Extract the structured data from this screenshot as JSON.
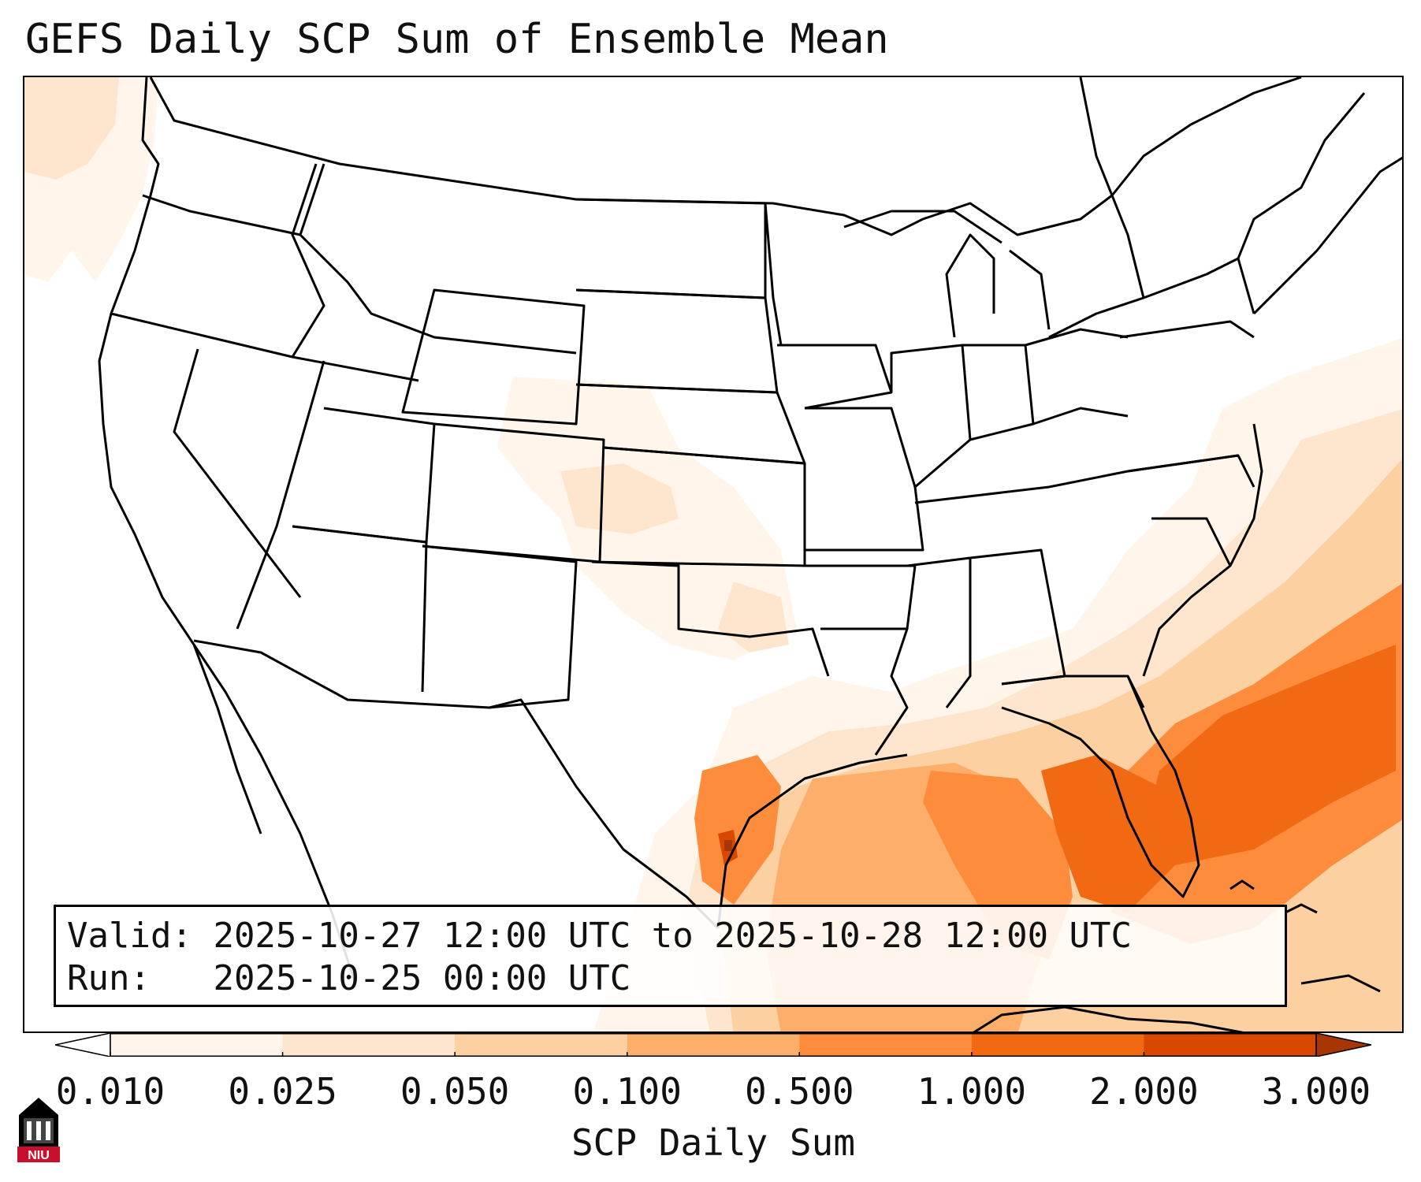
{
  "title": "GEFS Daily SCP Sum of Ensemble Mean",
  "info": {
    "valid_label": "Valid:",
    "valid_text": "2025-10-27 12:00 UTC to 2025-10-28 12:00 UTC",
    "run_label": "Run:",
    "run_text": "2025-10-25 00:00 UTC"
  },
  "colorbar": {
    "label": "SCP Daily Sum",
    "ticks": [
      "0.010",
      "0.025",
      "0.050",
      "0.100",
      "0.500",
      "1.000",
      "2.000",
      "3.000"
    ],
    "colors": [
      "#fff5eb",
      "#fee6ce",
      "#fdd0a2",
      "#fdae6b",
      "#fd8d3c",
      "#f16913",
      "#d94801",
      "#a63603"
    ],
    "under_color": "#ffffff",
    "over_color": "#a63603"
  },
  "logo": {
    "text": "NIU",
    "colors": {
      "red": "#c8102e",
      "black": "#000000",
      "white": "#ffffff"
    }
  }
}
